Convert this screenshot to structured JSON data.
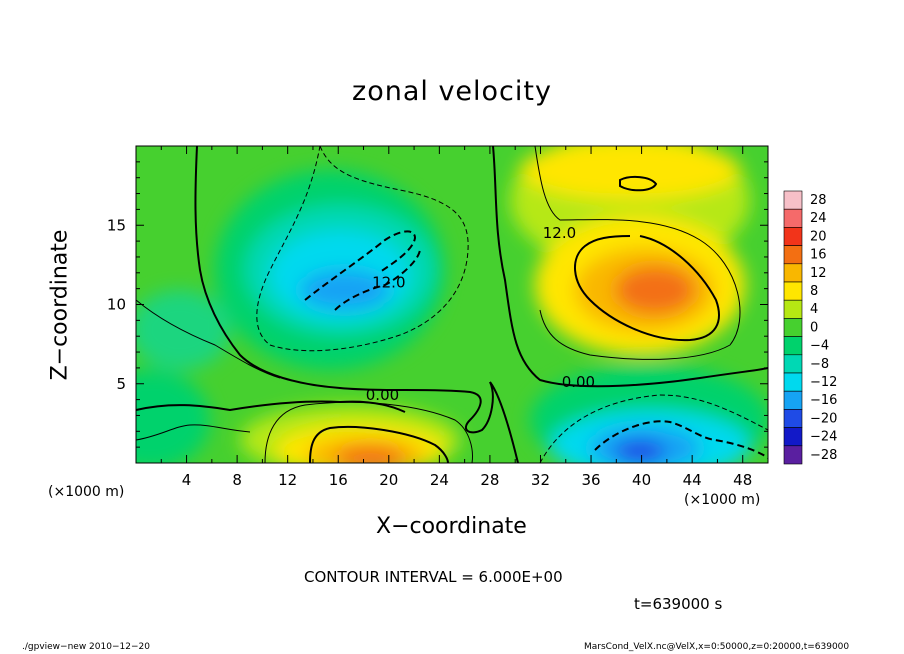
{
  "chart_data": {
    "type": "heatmap",
    "title": "zonal velocity",
    "xlabel": "X−coordinate",
    "ylabel": "Z−coordinate",
    "x_unit": "(×1000 m)",
    "y_unit": "(×1000 m)",
    "xlim": [
      0,
      50
    ],
    "ylim": [
      0,
      20
    ],
    "x_ticks": [
      4,
      8,
      12,
      16,
      20,
      24,
      28,
      32,
      36,
      40,
      44,
      48
    ],
    "y_ticks": [
      5,
      10,
      15
    ],
    "colorbar": {
      "levels": [
        28,
        24,
        20,
        16,
        12,
        8,
        4,
        0,
        -4,
        -8,
        -12,
        -16,
        -20,
        -24,
        -28
      ],
      "labels": [
        "28",
        "24",
        "20",
        "16",
        "12",
        "8",
        "4",
        "0",
        "−4",
        "−8",
        "−12",
        "−16",
        "−20",
        "−24",
        "−28"
      ],
      "colors": [
        "#f7c0c8",
        "#f56a6a",
        "#f2341a",
        "#f36f12",
        "#f9b700",
        "#ffe600",
        "#b6e813",
        "#46d02f",
        "#00d26c",
        "#00d8b4",
        "#00d9ee",
        "#16a3f4",
        "#1f4be6",
        "#1219c8",
        "#5a1fa0"
      ]
    },
    "contour_interval": "CONTOUR INTERVAL = 6.000E+00",
    "contour_labels": [
      {
        "text": "12.0",
        "x": 33.5,
        "z": 14.5
      },
      {
        "text": "12.0",
        "x": 20.0,
        "z": 11.4
      },
      {
        "text": "0.00",
        "x": 19.5,
        "z": 4.3
      },
      {
        "text": "0.00",
        "x": 35.0,
        "z": 5.1
      }
    ],
    "features": [
      {
        "name": "positive maximum upper right",
        "x": 40,
        "z": 11.5,
        "value": 16
      },
      {
        "name": "negative minimum upper left",
        "x": 17,
        "z": 11,
        "value": -12
      },
      {
        "name": "positive maximum lower left",
        "x": 18,
        "z": 1.5,
        "value": 16
      },
      {
        "name": "negative minimum lower right",
        "x": 40,
        "z": 1.5,
        "value": -16
      }
    ]
  },
  "time_label": "t=639000 s",
  "footer_left": "./gpview−new   2010−12−20",
  "footer_right": "MarsCond_VelX.nc@VelX,x=0:50000,z=0:20000,t=639000"
}
